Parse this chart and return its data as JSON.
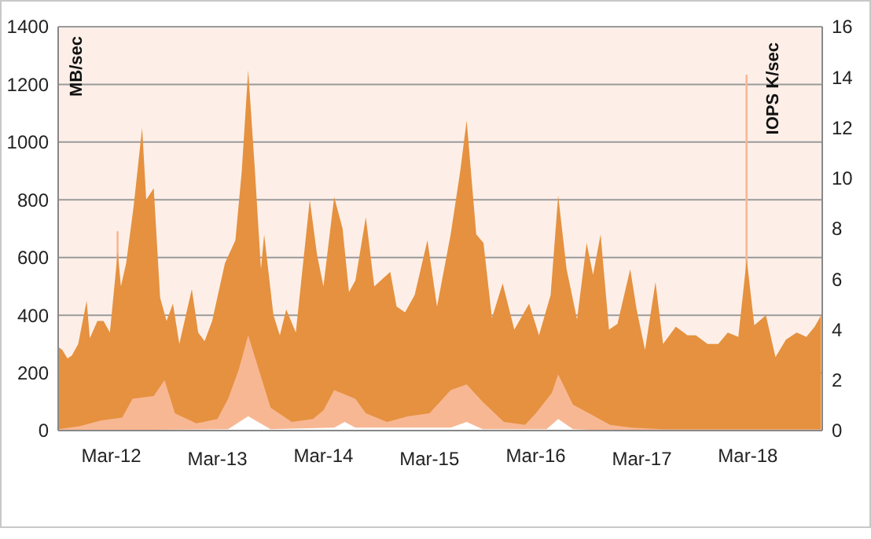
{
  "chart_data": {
    "type": "area",
    "ylabel": "MB/sec",
    "y2label": "IOPS K/sec",
    "xlim": [
      "2011-08-31",
      "2018-11-12"
    ],
    "xticks": [
      {
        "value": "2012-03",
        "label": "Mar-12"
      },
      {
        "value": "2013-03",
        "label": "Mar-13"
      },
      {
        "value": "2014-03",
        "label": "Mar-14"
      },
      {
        "value": "2015-03",
        "label": "Mar-15"
      },
      {
        "value": "2016-03",
        "label": "Mar-16"
      },
      {
        "value": "2017-03",
        "label": "Mar-17"
      },
      {
        "value": "2018-03",
        "label": "Mar-18"
      }
    ],
    "ylim": [
      0,
      1400
    ],
    "yticks": [
      0,
      200,
      400,
      600,
      800,
      1000,
      1200,
      1400
    ],
    "y2lim": [
      0,
      16
    ],
    "y2ticks": [
      0,
      2,
      4,
      6,
      8,
      10,
      12,
      14,
      16
    ],
    "grid": "y",
    "series": [
      {
        "type": "area",
        "axis": "y2",
        "color": "#f8b793",
        "x": [
          "2012-03-19",
          "2012-03-26",
          "2012-08-31",
          "2018-02-21",
          "2018-02-28"
        ],
        "values": [
          7.9,
          7.9,
          null,
          14.1,
          14.1
        ]
      },
      {
        "type": "area",
        "axis": "y",
        "color": "#e5913f",
        "x": [
          "2011-08-31",
          "2011-09-14",
          "2011-10-02",
          "2011-10-17",
          "2011-11-08",
          "2011-12-07",
          "2011-12-18",
          "2012-01-13",
          "2012-02-03",
          "2012-02-25",
          "2012-03-23",
          "2012-04-03",
          "2012-04-21",
          "2012-05-17",
          "2012-06-15",
          "2012-06-29",
          "2012-07-25",
          "2012-08-16",
          "2012-09-07",
          "2012-09-29",
          "2012-10-21",
          "2012-12-03",
          "2012-12-25",
          "2013-01-16",
          "2013-02-11",
          "2013-03-27",
          "2013-05-02",
          "2013-05-24",
          "2013-06-15",
          "2013-07-07",
          "2013-07-29",
          "2013-08-09",
          "2013-09-10",
          "2013-10-02",
          "2013-10-24",
          "2013-11-26",
          "2014-01-13",
          "2014-02-07",
          "2014-03-01",
          "2014-04-07",
          "2014-05-06",
          "2014-05-28",
          "2014-06-19",
          "2014-07-25",
          "2014-08-23",
          "2014-10-17",
          "2014-11-08",
          "2014-12-07",
          "2015-01-09",
          "2015-02-22",
          "2015-03-27",
          "2015-05-13",
          "2015-06-15",
          "2015-07-07",
          "2015-08-09",
          "2015-09-03",
          "2015-10-02",
          "2015-11-08",
          "2015-12-18",
          "2016-02-07",
          "2016-03-12",
          "2016-04-21",
          "2016-05-17",
          "2016-06-15",
          "2016-07-21",
          "2016-08-23",
          "2016-09-14",
          "2016-10-10",
          "2016-11-08",
          "2016-12-07",
          "2017-01-20",
          "2017-02-11",
          "2017-03-12",
          "2017-04-17",
          "2017-05-13",
          "2017-06-26",
          "2017-08-05",
          "2017-09-03",
          "2017-10-13",
          "2017-11-19",
          "2017-12-22",
          "2018-01-27",
          "2018-02-25",
          "2018-03-23",
          "2018-05-02",
          "2018-06-04",
          "2018-07-10",
          "2018-08-16",
          "2018-09-18",
          "2018-10-17",
          "2018-11-08"
        ],
        "values": [
          290,
          280,
          250,
          260,
          300,
          450,
          320,
          380,
          380,
          340,
          620,
          500,
          580,
          780,
          1050,
          800,
          840,
          460,
          380,
          440,
          300,
          490,
          340,
          310,
          380,
          580,
          660,
          900,
          1250,
          920,
          560,
          680,
          400,
          330,
          420,
          340,
          800,
          610,
          500,
          810,
          700,
          480,
          520,
          740,
          500,
          550,
          430,
          410,
          470,
          660,
          430,
          680,
          900,
          1075,
          680,
          650,
          390,
          510,
          350,
          440,
          330,
          470,
          815,
          560,
          385,
          650,
          540,
          680,
          350,
          370,
          560,
          420,
          280,
          515,
          300,
          360,
          330,
          330,
          300,
          300,
          340,
          325,
          595,
          365,
          400,
          255,
          315,
          340,
          325,
          360,
          400
        ]
      },
      {
        "type": "area",
        "axis": "y",
        "color": "#f8b793",
        "x": [
          "2011-08-31",
          "2011-11-12",
          "2012-01-24",
          "2012-04-07",
          "2012-05-13",
          "2012-07-25",
          "2012-08-31",
          "2012-10-06",
          "2012-12-18",
          "2013-03-01",
          "2013-04-07",
          "2013-05-13",
          "2013-06-15",
          "2013-07-25",
          "2013-08-31",
          "2013-11-12",
          "2014-01-24",
          "2014-03-01",
          "2014-04-07",
          "2014-06-19",
          "2014-07-25",
          "2014-10-06",
          "2014-12-18",
          "2015-03-01",
          "2015-05-13",
          "2015-07-07",
          "2015-08-31",
          "2015-11-12",
          "2016-01-24",
          "2016-03-01",
          "2016-04-25",
          "2016-05-17",
          "2016-07-07",
          "2016-08-31",
          "2016-11-12",
          "2017-01-24",
          "2017-05-13",
          "2018-11-12"
        ],
        "values": [
          5,
          15,
          35,
          45,
          110,
          120,
          175,
          60,
          25,
          40,
          110,
          210,
          330,
          200,
          80,
          30,
          40,
          70,
          140,
          110,
          60,
          30,
          50,
          60,
          140,
          160,
          100,
          30,
          20,
          60,
          130,
          195,
          90,
          60,
          20,
          10,
          5,
          5
        ]
      },
      {
        "type": "area",
        "axis": "y",
        "color": "#ffffff",
        "x": [
          "2011-08-31",
          "2013-04-07",
          "2013-06-15",
          "2013-08-31",
          "2014-04-07",
          "2014-05-13",
          "2014-06-19",
          "2015-05-13",
          "2015-07-07",
          "2015-08-31",
          "2016-04-07",
          "2016-05-17",
          "2016-07-07",
          "2016-11-12",
          "2018-11-12"
        ],
        "values": [
          0,
          5,
          50,
          5,
          10,
          30,
          10,
          10,
          30,
          5,
          5,
          40,
          5,
          0,
          0
        ]
      }
    ]
  }
}
